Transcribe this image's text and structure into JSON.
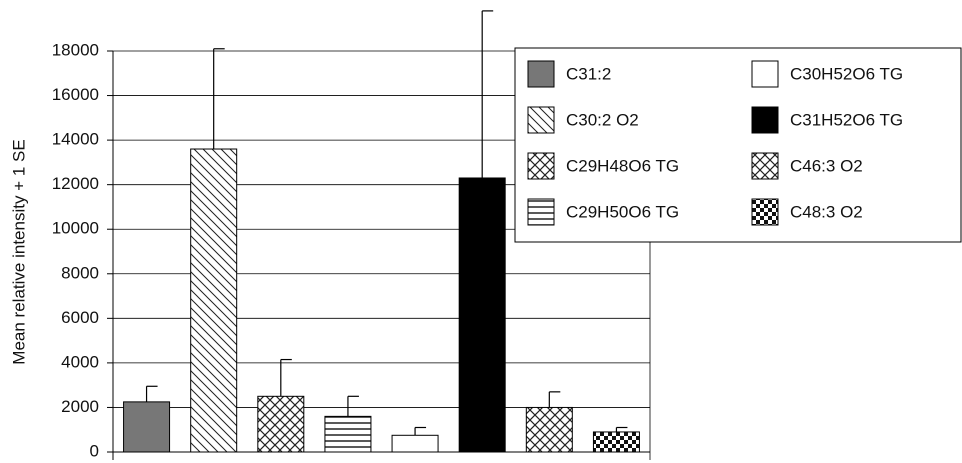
{
  "chart_data": {
    "type": "bar",
    "y_label": "Mean relative intensity + 1 SE",
    "categories": [
      "C31:2",
      "C30:2 O2",
      "C29H48O6 TG",
      "C29H50O6 TG",
      "C30H52O6 TG",
      "C31H52O6 TG",
      "C46:3 O2",
      "C48:3 O2"
    ],
    "values": [
      2250,
      13600,
      2500,
      1600,
      750,
      12300,
      2000,
      900
    ],
    "errors": [
      700,
      4500,
      1650,
      900,
      350,
      7500,
      700,
      200
    ],
    "patterns": [
      "solid-gray",
      "diagonal",
      "crosshatch",
      "horizontal",
      "white",
      "black",
      "crosshatch",
      "checker"
    ],
    "ylim": [
      0,
      18000
    ],
    "yticks": [
      0,
      2000,
      4000,
      6000,
      8000,
      10000,
      12000,
      14000,
      16000,
      18000
    ],
    "grid": true,
    "legend": "upper right"
  }
}
